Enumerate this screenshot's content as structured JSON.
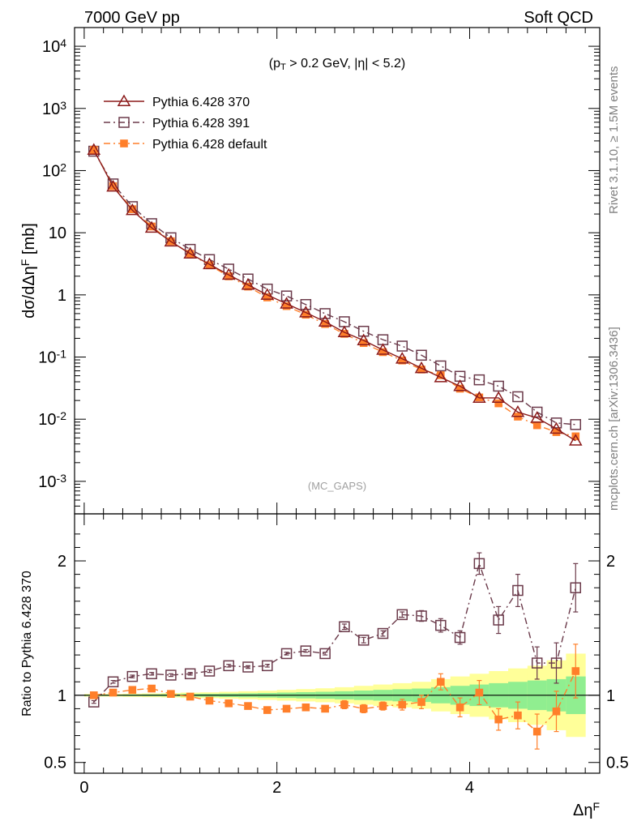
{
  "header": {
    "left": "7000 GeV pp",
    "right": "Soft QCD"
  },
  "side_labels": {
    "rivet": "Rivet 3.1.10, ≥ 1.5M events",
    "mcplots": "mcplots.cern.ch [arXiv:1306.3436]"
  },
  "colors": {
    "pythia370": "#8b1a1a",
    "pythia391": "#6b3a4a",
    "pythia_default": "#ff7f2a",
    "band_inner": "#90ee90",
    "band_outer": "#ffff99"
  },
  "chart_data": [
    {
      "type": "line",
      "annotation": "(p_T > 0.2 GeV, |η| < 5.2)",
      "watermark": "(MC_GAPS)",
      "ylabel": "dσ/dΔη^F [mb]",
      "yscale": "log",
      "ylim": [
        0.0003,
        20000
      ],
      "xlim": [
        -0.1,
        5.35
      ],
      "ytick_labels": [
        "10^-3",
        "10^-2",
        "10^-1",
        "1",
        "10",
        "10^2",
        "10^3",
        "10^4"
      ],
      "legend_position": "top-left",
      "x": [
        0.1,
        0.3,
        0.5,
        0.7,
        0.9,
        1.1,
        1.3,
        1.5,
        1.7,
        1.9,
        2.1,
        2.3,
        2.5,
        2.7,
        2.9,
        3.1,
        3.3,
        3.5,
        3.7,
        3.9,
        4.1,
        4.3,
        4.5,
        4.7,
        4.9,
        5.1
      ],
      "series": [
        {
          "name": "Pythia 6.428 370",
          "marker": "triangle",
          "linestyle": "solid",
          "values": [
            215,
            55,
            23,
            12,
            7.2,
            4.6,
            3.1,
            2.1,
            1.45,
            1.0,
            0.72,
            0.52,
            0.37,
            0.25,
            0.185,
            0.13,
            0.094,
            0.066,
            0.047,
            0.034,
            0.022,
            0.022,
            0.013,
            0.0105,
            0.007,
            0.0045
          ]
        },
        {
          "name": "Pythia 6.428 391",
          "marker": "open-square",
          "linestyle": "dash-dot",
          "values": [
            205,
            61,
            26.3,
            14,
            8.3,
            5.4,
            3.7,
            2.6,
            1.8,
            1.24,
            0.96,
            0.7,
            0.5,
            0.37,
            0.26,
            0.19,
            0.15,
            0.107,
            0.072,
            0.049,
            0.043,
            0.034,
            0.023,
            0.013,
            0.0087,
            0.0082
          ]
        },
        {
          "name": "Pythia 6.428 default",
          "marker": "filled-square",
          "linestyle": "dash-dot",
          "values": [
            215,
            56.1,
            23.9,
            12.6,
            7.3,
            4.58,
            3.0,
            1.99,
            1.36,
            0.91,
            0.66,
            0.48,
            0.34,
            0.236,
            0.168,
            0.12,
            0.088,
            0.063,
            0.051,
            0.031,
            0.0224,
            0.018,
            0.011,
            0.008,
            0.0062,
            0.0053
          ]
        }
      ]
    },
    {
      "type": "line",
      "ylabel": "Ratio to Pythia 6.428 370",
      "xlabel": "Δη^F",
      "ylim": [
        0.42,
        2.35
      ],
      "xlim": [
        -0.1,
        5.35
      ],
      "yticks": [
        0.5,
        1,
        2
      ],
      "ytick_labels": [
        "0.5",
        "1",
        "2"
      ],
      "xticks": [
        0,
        2,
        4
      ],
      "xtick_labels": [
        "0",
        "2",
        "4"
      ],
      "reference_line": 1,
      "bands": {
        "x_edges": [
          0.0,
          0.2,
          0.4,
          0.6,
          0.8,
          1.0,
          1.2,
          1.4,
          1.6,
          1.8,
          2.0,
          2.2,
          2.4,
          2.6,
          2.8,
          3.0,
          3.2,
          3.4,
          3.6,
          3.8,
          4.0,
          4.2,
          4.4,
          4.6,
          4.8,
          5.0,
          5.2
        ],
        "inner_halfwidth": [
          0.005,
          0.005,
          0.006,
          0.007,
          0.008,
          0.01,
          0.011,
          0.013,
          0.015,
          0.017,
          0.02,
          0.023,
          0.026,
          0.03,
          0.035,
          0.04,
          0.045,
          0.05,
          0.06,
          0.07,
          0.08,
          0.09,
          0.1,
          0.11,
          0.12,
          0.14
        ],
        "outer_halfwidth": [
          0.01,
          0.01,
          0.012,
          0.014,
          0.016,
          0.02,
          0.022,
          0.026,
          0.03,
          0.034,
          0.04,
          0.046,
          0.052,
          0.06,
          0.07,
          0.08,
          0.09,
          0.1,
          0.12,
          0.14,
          0.16,
          0.18,
          0.2,
          0.22,
          0.26,
          0.31
        ]
      },
      "x": [
        0.1,
        0.3,
        0.5,
        0.7,
        0.9,
        1.1,
        1.3,
        1.5,
        1.7,
        1.9,
        2.1,
        2.3,
        2.5,
        2.7,
        2.9,
        3.1,
        3.3,
        3.5,
        3.7,
        3.9,
        4.1,
        4.3,
        4.5,
        4.7,
        4.9,
        5.1
      ],
      "series": [
        {
          "name": "Pythia 6.428 391",
          "marker": "open-square",
          "linestyle": "dash-dot",
          "values": [
            0.95,
            1.1,
            1.14,
            1.16,
            1.15,
            1.16,
            1.18,
            1.22,
            1.21,
            1.22,
            1.31,
            1.33,
            1.31,
            1.51,
            1.41,
            1.46,
            1.6,
            1.59,
            1.52,
            1.43,
            1.98,
            1.56,
            1.78,
            1.24,
            1.24,
            1.8
          ],
          "errors": [
            0.01,
            0.01,
            0.01,
            0.01,
            0.01,
            0.01,
            0.01,
            0.01,
            0.01,
            0.01,
            0.01,
            0.01,
            0.01,
            0.02,
            0.02,
            0.02,
            0.02,
            0.04,
            0.05,
            0.05,
            0.08,
            0.1,
            0.12,
            0.12,
            0.15,
            0.18
          ]
        },
        {
          "name": "Pythia 6.428 default",
          "marker": "filled-square",
          "linestyle": "dash-dot",
          "values": [
            1.0,
            1.02,
            1.04,
            1.05,
            1.01,
            0.99,
            0.96,
            0.94,
            0.92,
            0.89,
            0.9,
            0.91,
            0.9,
            0.93,
            0.9,
            0.92,
            0.93,
            0.95,
            1.1,
            0.91,
            1.02,
            0.82,
            0.85,
            0.73,
            0.88,
            1.18
          ],
          "errors": [
            0.01,
            0.01,
            0.01,
            0.01,
            0.01,
            0.01,
            0.01,
            0.01,
            0.01,
            0.01,
            0.02,
            0.02,
            0.02,
            0.03,
            0.03,
            0.03,
            0.04,
            0.05,
            0.06,
            0.07,
            0.09,
            0.08,
            0.1,
            0.13,
            0.15,
            0.2
          ]
        }
      ]
    }
  ]
}
